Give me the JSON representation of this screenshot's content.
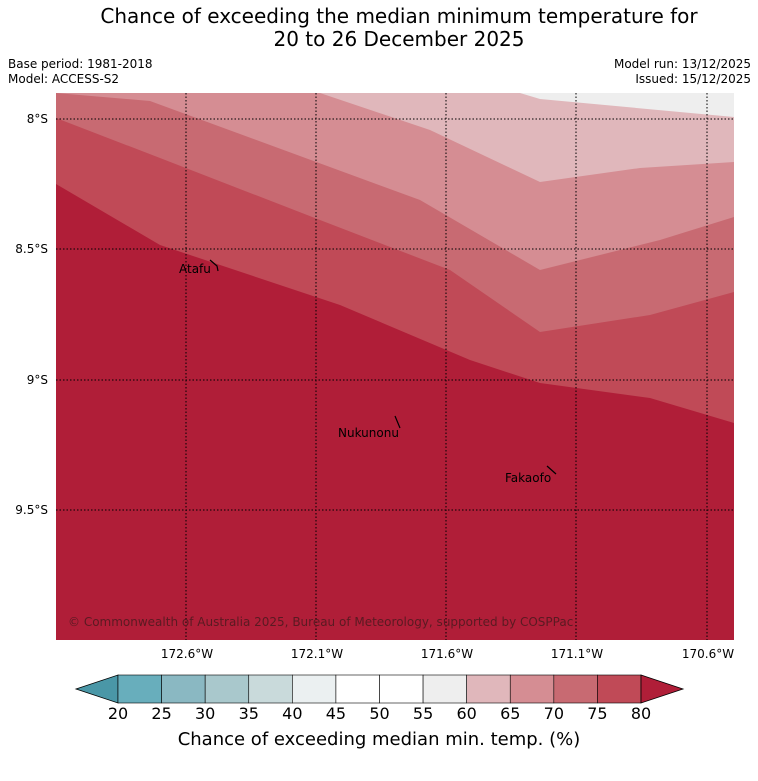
{
  "title": {
    "line1": "Chance of exceeding the median minimum temperature for",
    "line2": "20 to 26 December 2025"
  },
  "meta": {
    "base_period": "Base period: 1981-2018",
    "model": "Model: ACCESS-S2",
    "model_run": "Model run: 13/12/2025",
    "issued": "Issued: 15/12/2025"
  },
  "map": {
    "lat_labels": [
      "8°S",
      "8.5°S",
      "9°S",
      "9.5°S"
    ],
    "lon_labels": [
      "172.6°W",
      "172.1°W",
      "171.6°W",
      "171.1°W",
      "170.6°W"
    ],
    "places": [
      "Atafu",
      "Nukunonu",
      "Fakaofo"
    ],
    "copyright": "© Commonwealth of Australia 2025, Bureau of Meteorology, supported by COSPPac",
    "band_colors": [
      "#eeeeee",
      "#e0b7bb",
      "#d58d93",
      "#c86a72",
      "#c04a57",
      "#b01e38"
    ]
  },
  "colorbar": {
    "label": "Chance of exceeding median min. temp. (%)",
    "ticks": [
      "20",
      "25",
      "30",
      "35",
      "40",
      "45",
      "50",
      "55",
      "60",
      "65",
      "70",
      "75",
      "80"
    ],
    "colors": [
      "#4a97a7",
      "#68aebc",
      "#8ab8c2",
      "#a9c8cc",
      "#c9dadb",
      "#ebf0f1",
      "#ffffff",
      "#ffffff",
      "#eeeeee",
      "#e0b7bb",
      "#d58d93",
      "#c86a72",
      "#c04a57",
      "#b01e38"
    ]
  }
}
